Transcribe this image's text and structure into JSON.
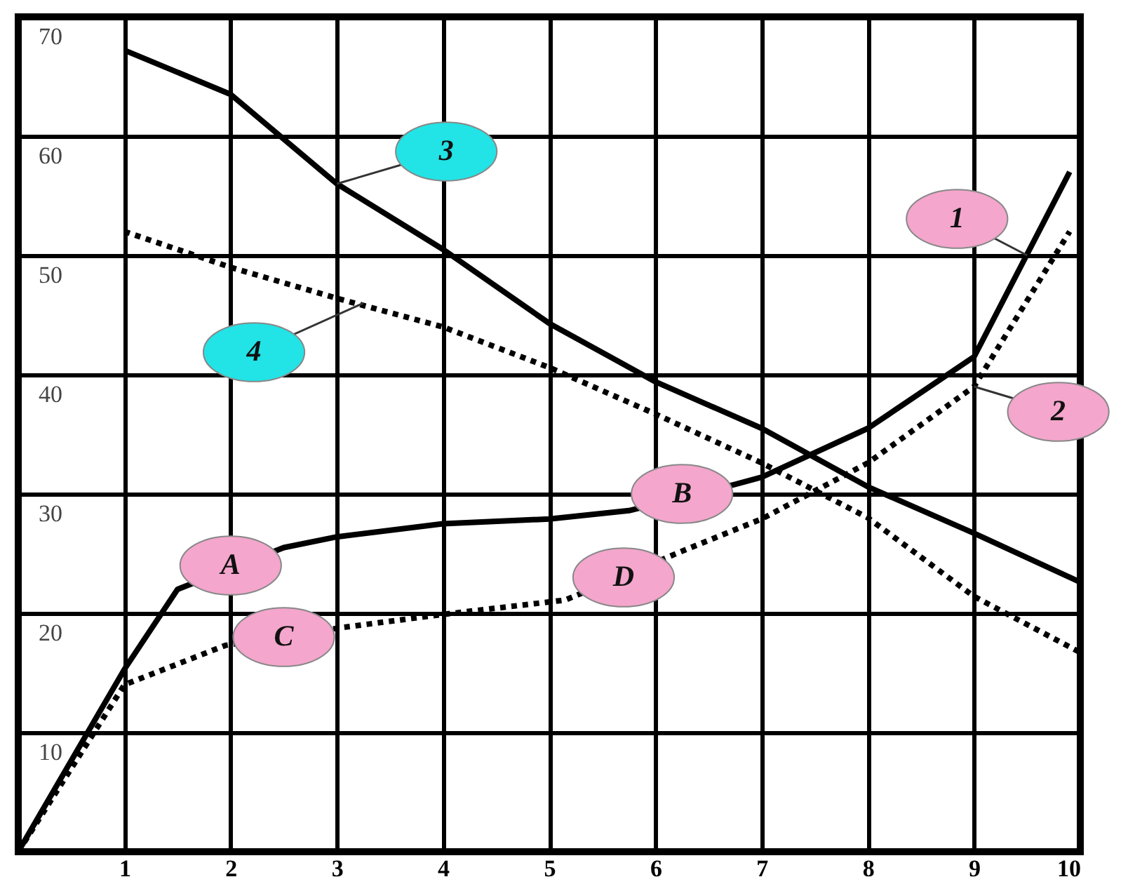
{
  "chart_data": {
    "type": "line",
    "xlim": [
      0,
      10
    ],
    "ylim": [
      0,
      70
    ],
    "xticks": [
      1,
      2,
      3,
      4,
      5,
      6,
      7,
      8,
      9,
      10
    ],
    "yticks": [
      10,
      20,
      30,
      40,
      50,
      60,
      70
    ],
    "grid": true,
    "series": [
      {
        "color": "#000000",
        "line_style": "solid",
        "x": [
          0,
          1,
          1.5,
          2.5,
          3,
          4,
          5,
          5.75,
          6.75,
          7,
          8,
          9,
          9.9
        ],
        "values": [
          0,
          15.3,
          22,
          25.5,
          26.4,
          27.5,
          27.9,
          28.6,
          30.8,
          31.4,
          35.5,
          41.5,
          57
        ]
      },
      {
        "color": "#000000",
        "line_style": "dotted",
        "x": [
          0,
          1,
          1.95,
          3.05,
          4,
          5.15,
          6.25,
          7,
          8,
          9,
          9.9
        ],
        "values": [
          0,
          14,
          17.3,
          18.8,
          19.9,
          21.1,
          25.2,
          27.9,
          32.6,
          39,
          52
        ]
      },
      {
        "color": "#000000",
        "line_style": "solid",
        "x": [
          1,
          2,
          3,
          4,
          5,
          6,
          7,
          8,
          9,
          10
        ],
        "values": [
          67.2,
          63.5,
          56,
          50.5,
          44.3,
          39.4,
          35.5,
          30.6,
          26.7,
          22.6
        ]
      },
      {
        "color": "#000000",
        "line_style": "dotted",
        "x": [
          1,
          2,
          3,
          4,
          5,
          6,
          7,
          8,
          9,
          10
        ],
        "values": [
          52,
          49,
          46.4,
          44,
          40.6,
          36.7,
          32.6,
          28,
          21.4,
          16.7
        ]
      }
    ],
    "annotations": [
      {
        "text": "1",
        "x": 9.5,
        "y": 50
      },
      {
        "text": "2",
        "x": 9,
        "y": 39
      },
      {
        "text": "3",
        "x": 3,
        "y": 56
      },
      {
        "text": "4",
        "x": 3.25,
        "y": 46
      },
      {
        "text": "A",
        "x": 2,
        "y": 24
      },
      {
        "text": "B",
        "x": 6.25,
        "y": 30
      },
      {
        "text": "C",
        "x": 2.5,
        "y": 18
      },
      {
        "text": "D",
        "x": 5.7,
        "y": 23
      }
    ]
  }
}
